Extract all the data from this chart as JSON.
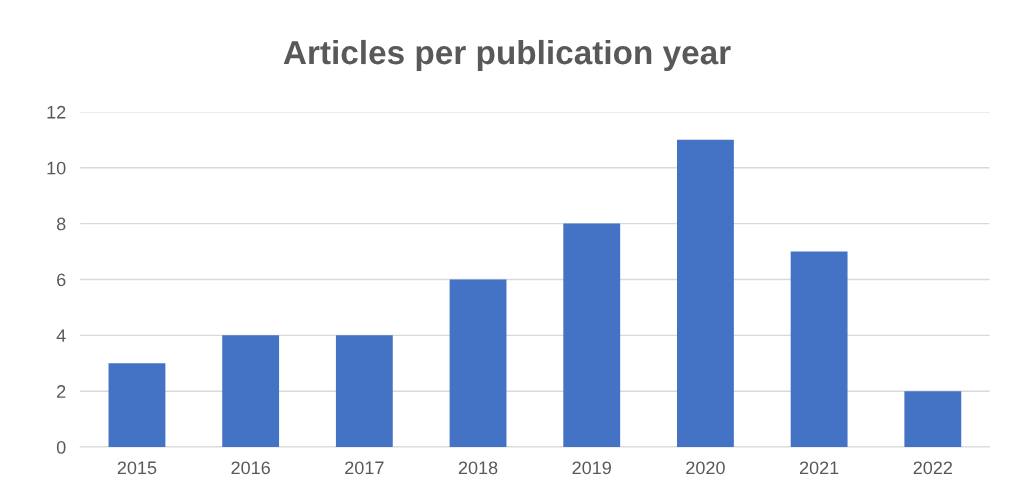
{
  "chart_data": {
    "type": "bar",
    "title": "Articles per publication year",
    "categories": [
      "2015",
      "2016",
      "2017",
      "2018",
      "2019",
      "2020",
      "2021",
      "2022"
    ],
    "values": [
      3,
      4,
      4,
      6,
      8,
      11,
      7,
      2
    ],
    "color": "#4472c4",
    "ylim": [
      0,
      12
    ],
    "yticks": [
      0,
      2,
      4,
      6,
      8,
      10,
      12
    ],
    "grid": "y",
    "legend": false
  }
}
